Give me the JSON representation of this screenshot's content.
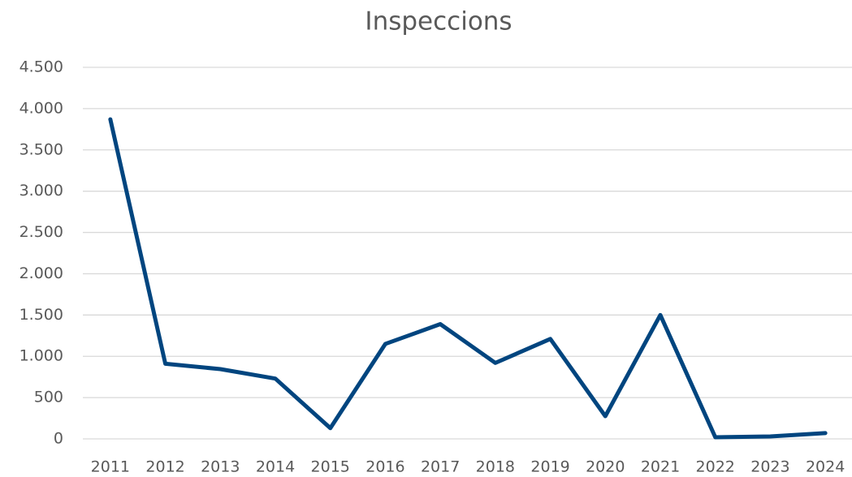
{
  "chart_data": {
    "type": "line",
    "title": "Inspeccions",
    "categories": [
      "2011",
      "2012",
      "2013",
      "2014",
      "2015",
      "2016",
      "2017",
      "2018",
      "2019",
      "2020",
      "2021",
      "2022",
      "2023",
      "2024"
    ],
    "series": [
      {
        "name": "Inspeccions",
        "color": "#00457f",
        "values": [
          3870,
          910,
          845,
          730,
          130,
          1150,
          1390,
          920,
          1210,
          275,
          1500,
          20,
          30,
          70
        ]
      }
    ],
    "ylim": [
      0,
      4500
    ],
    "yticks": [
      0,
      500,
      {
        "value": 1000,
        "label": "1.000"
      },
      {
        "value": 1500,
        "label": "1.500"
      },
      {
        "value": 2000,
        "label": "2.000"
      },
      {
        "value": 2500,
        "label": "2.500"
      },
      {
        "value": 3000,
        "label": "3.000"
      },
      {
        "value": 3500,
        "label": "3.500"
      },
      {
        "value": 4000,
        "label": "4.000"
      },
      {
        "value": 4500,
        "label": "4.500"
      }
    ],
    "grid": true
  }
}
